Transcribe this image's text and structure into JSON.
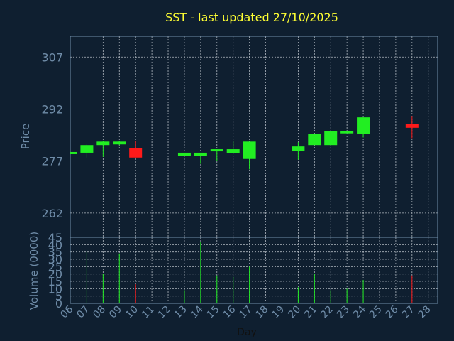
{
  "chart_data": {
    "type": "candlestick",
    "title": "SST - last updated 27/10/2025",
    "xlabel": "Day",
    "x_ticks": [
      "06",
      "07",
      "08",
      "09",
      "10",
      "11",
      "12",
      "13",
      "14",
      "15",
      "16",
      "17",
      "18",
      "19",
      "20",
      "21",
      "22",
      "23",
      "24",
      "25",
      "26",
      "27",
      "28"
    ],
    "price_panel": {
      "ylabel": "Price",
      "ylim": [
        255,
        313
      ],
      "y_ticks": [
        262,
        277,
        292,
        307
      ],
      "candles": [
        {
          "day": "06",
          "open": 279.2,
          "close": 279.6,
          "high": 279.6,
          "low": 279.2
        },
        {
          "day": "07",
          "open": 279.4,
          "close": 281.6,
          "high": 281.8,
          "low": 278.0
        },
        {
          "day": "08",
          "open": 281.6,
          "close": 282.6,
          "high": 282.8,
          "low": 278.2
        },
        {
          "day": "09",
          "open": 281.8,
          "close": 282.6,
          "high": 282.8,
          "low": 281.6
        },
        {
          "day": "10",
          "open": 280.8,
          "close": 278.0,
          "high": 282.8,
          "low": 278.0
        },
        {
          "day": "13",
          "open": 278.4,
          "close": 279.4,
          "high": 279.4,
          "low": 278.4
        },
        {
          "day": "14",
          "open": 278.4,
          "close": 279.4,
          "high": 279.4,
          "low": 276.2
        },
        {
          "day": "15",
          "open": 280.0,
          "close": 280.4,
          "high": 280.4,
          "low": 277.0
        },
        {
          "day": "16",
          "open": 279.2,
          "close": 280.4,
          "high": 282.6,
          "low": 279.2
        },
        {
          "day": "17",
          "open": 277.6,
          "close": 282.6,
          "high": 282.6,
          "low": 274.6
        },
        {
          "day": "20",
          "open": 280.0,
          "close": 281.2,
          "high": 282.4,
          "low": 277.4
        },
        {
          "day": "21",
          "open": 281.6,
          "close": 284.8,
          "high": 284.8,
          "low": 281.6
        },
        {
          "day": "22",
          "open": 281.6,
          "close": 285.6,
          "high": 285.6,
          "low": 281.6
        },
        {
          "day": "23",
          "open": 285.2,
          "close": 285.6,
          "high": 285.6,
          "low": 285.2
        },
        {
          "day": "24",
          "open": 284.8,
          "close": 289.6,
          "high": 289.6,
          "low": 283.8
        },
        {
          "day": "27",
          "open": 287.6,
          "close": 286.6,
          "high": 290.0,
          "low": 283.6
        }
      ]
    },
    "volume_panel": {
      "ylabel": "Volume (0000)",
      "ylim": [
        0,
        45
      ],
      "y_ticks": [
        0,
        5,
        10,
        15,
        20,
        25,
        30,
        35,
        40,
        45
      ],
      "bars": [
        {
          "day": "07",
          "value": 35,
          "direction": "up"
        },
        {
          "day": "08",
          "value": 20,
          "direction": "up"
        },
        {
          "day": "09",
          "value": 34,
          "direction": "up"
        },
        {
          "day": "10",
          "value": 13,
          "direction": "down"
        },
        {
          "day": "13",
          "value": 9,
          "direction": "up"
        },
        {
          "day": "14",
          "value": 42,
          "direction": "up"
        },
        {
          "day": "15",
          "value": 19,
          "direction": "up"
        },
        {
          "day": "16",
          "value": 18,
          "direction": "up"
        },
        {
          "day": "17",
          "value": 25,
          "direction": "up"
        },
        {
          "day": "20",
          "value": 11,
          "direction": "up"
        },
        {
          "day": "21",
          "value": 20,
          "direction": "up"
        },
        {
          "day": "22",
          "value": 9,
          "direction": "up"
        },
        {
          "day": "23",
          "value": 10,
          "direction": "up"
        },
        {
          "day": "24",
          "value": 16,
          "direction": "up"
        },
        {
          "day": "27",
          "value": 19,
          "direction": "down"
        }
      ]
    },
    "grid": true,
    "colors": {
      "up": "#22ee22",
      "down": "#ff1a1a",
      "background": "#0f1f30",
      "axis": "#6f8ca8",
      "grid": "#b0b8c0",
      "title": "#ffff33"
    }
  }
}
